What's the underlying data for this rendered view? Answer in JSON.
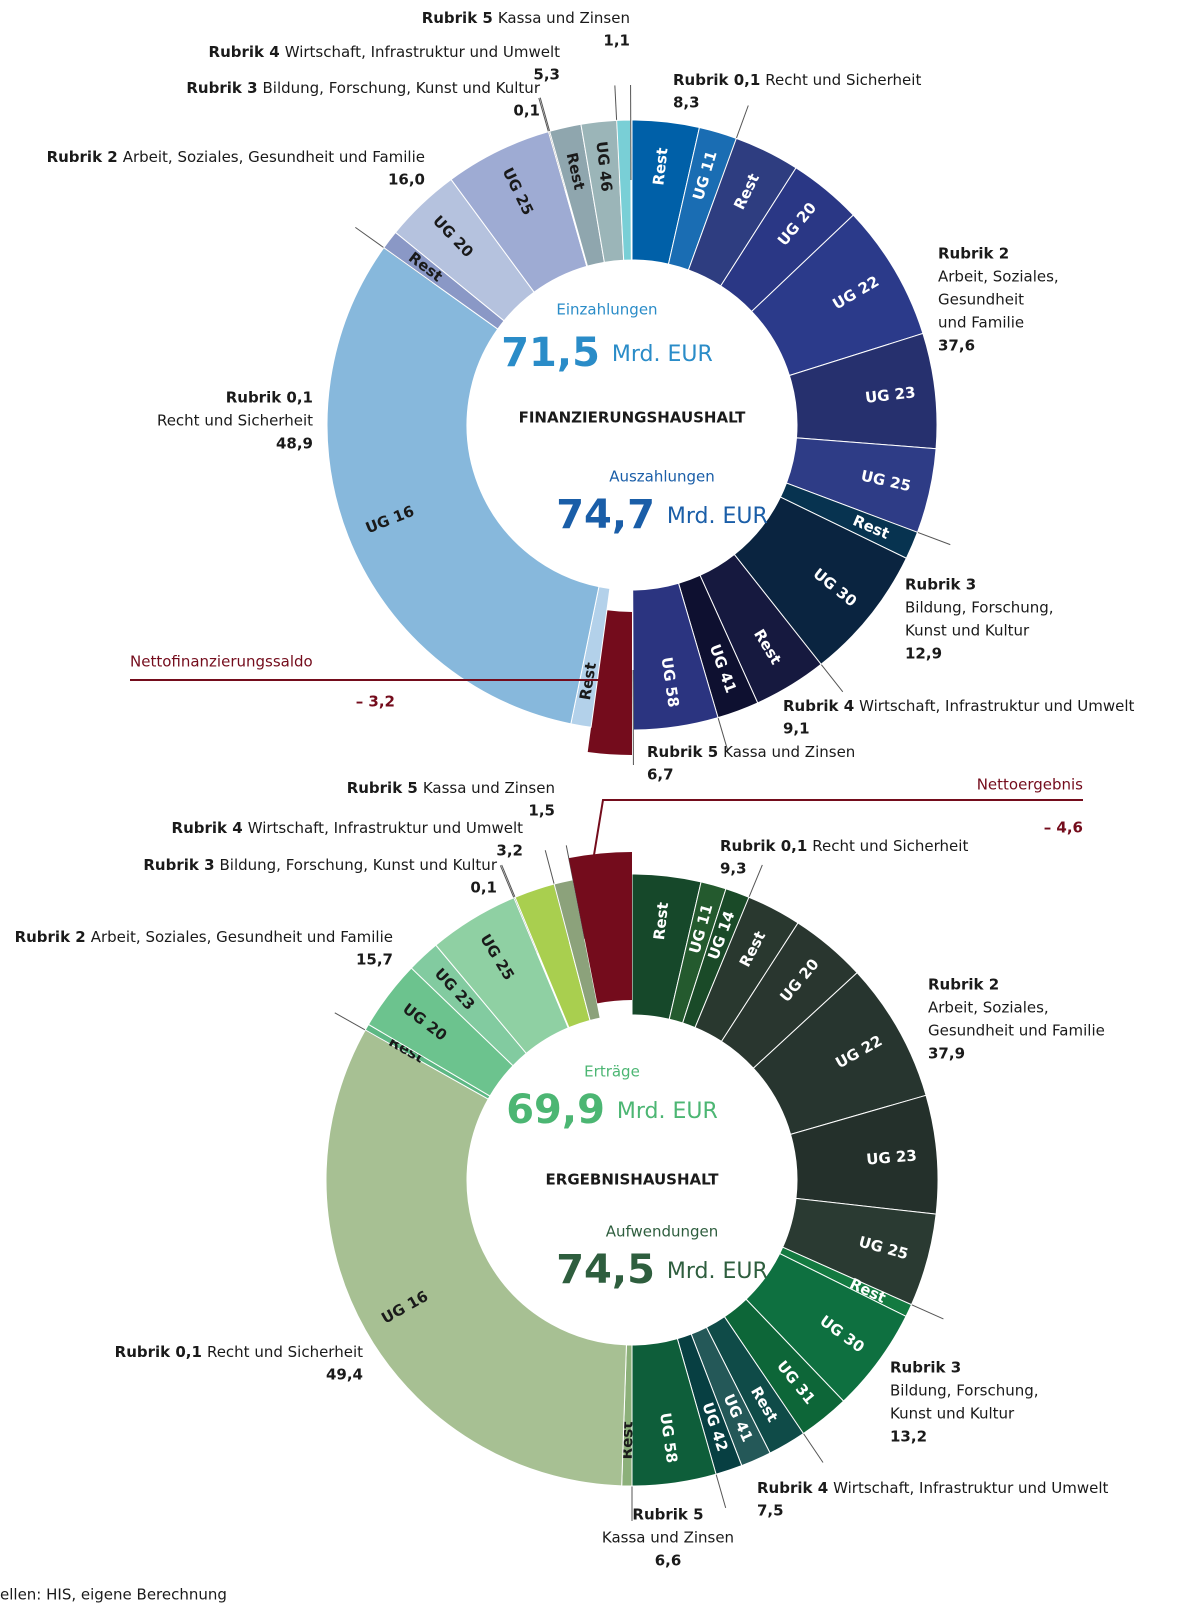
{
  "source": "ellen: HIS, eigene Berechnung",
  "chart_data": [
    {
      "type": "donut",
      "title": "FINANZIERUNGSHAUSHALT",
      "income": {
        "label": "Einzahlungen",
        "total": 71.5,
        "total_label": "71,5",
        "unit": "Mrd. EUR",
        "color": "#2a8cc8",
        "groups": [
          {
            "name": "Rubrik 0,1",
            "text": [
              "Recht und Sicherheit"
            ],
            "value": 48.9,
            "value_label": "48,9",
            "segments": [
              {
                "label": "Rest",
                "value": 1.6,
                "color": "#b3d1ea"
              },
              {
                "label": "UG 16",
                "value": 47.3,
                "color": "#87b8dc"
              }
            ]
          },
          {
            "name": "Rubrik 2",
            "text": [
              "Arbeit, Soziales, Gesundheit und Familie"
            ],
            "value": 16.0,
            "value_label": "16,0",
            "segments": [
              {
                "label": "Rest",
                "value": 1.5,
                "color": "#8a98c6"
              },
              {
                "label": "UG 20",
                "value": 6.0,
                "color": "#b5c2de"
              },
              {
                "label": "UG 25",
                "value": 8.5,
                "color": "#9eabd3"
              }
            ]
          },
          {
            "name": "Rubrik 3",
            "text": [
              "Bildung, Forschung, Kunst und Kultur"
            ],
            "value": 0.1,
            "value_label": "0,1",
            "segments": [
              {
                "label": null,
                "value": 0.1,
                "color": "#777777"
              }
            ]
          },
          {
            "name": "Rubrik 4",
            "text": [
              "Wirtschaft, Infrastruktur und Umwelt"
            ],
            "value": 5.3,
            "value_label": "5,3",
            "segments": [
              {
                "label": "Rest",
                "value": 2.5,
                "color": "#8fa6ae"
              },
              {
                "label": "UG 46",
                "value": 2.8,
                "color": "#9bb5b8"
              }
            ]
          },
          {
            "name": "Rubrik 5",
            "text": [
              "Kassa und Zinsen"
            ],
            "value": 1.1,
            "value_label": "1,1",
            "segments": [
              {
                "label": null,
                "value": 1.1,
                "color": "#79cfd6"
              }
            ]
          }
        ]
      },
      "expense": {
        "label": "Auszahlungen",
        "total": 74.7,
        "total_label": "74,7",
        "unit": "Mrd. EUR",
        "color": "#1a5ea8",
        "groups": [
          {
            "name": "Rubrik 0,1",
            "text": [
              "Recht und Sicherheit"
            ],
            "value": 8.3,
            "value_label": "8,3",
            "segments": [
              {
                "label": "Rest",
                "value": 5.3,
                "color": "#0060a8"
              },
              {
                "label": "UG 11",
                "value": 3.0,
                "color": "#1a6db3"
              }
            ]
          },
          {
            "name": "Rubrik 2",
            "text": [
              "Arbeit, Soziales,",
              "Gesundheit",
              "und Familie"
            ],
            "value": 37.6,
            "value_label": "37,6",
            "segments": [
              {
                "label": "Rest",
                "value": 5.2,
                "color": "#2e3d80"
              },
              {
                "label": "UG 20",
                "value": 5.8,
                "color": "#2a3785"
              },
              {
                "label": "UG 22",
                "value": 10.8,
                "color": "#2b3a8a"
              },
              {
                "label": "UG 23",
                "value": 9.1,
                "color": "#26306e"
              },
              {
                "label": "UG 25",
                "value": 6.7,
                "color": "#2e3c86"
              }
            ]
          },
          {
            "name": "Rubrik 3",
            "text": [
              "Bildung, Forschung,",
              "Kunst und Kultur"
            ],
            "value": 12.9,
            "value_label": "12,9",
            "segments": [
              {
                "label": "Rest",
                "value": 2.2,
                "color": "#073350"
              },
              {
                "label": "UG 30",
                "value": 10.7,
                "color": "#0a2440"
              }
            ]
          },
          {
            "name": "Rubrik 4",
            "text": [
              "Wirtschaft, Infrastruktur und Umwelt"
            ],
            "value": 9.1,
            "value_label": "9,1",
            "segments": [
              {
                "label": "Rest",
                "value": 5.8,
                "color": "#16193f"
              },
              {
                "label": "UG 41",
                "value": 3.3,
                "color": "#0e1030"
              }
            ]
          },
          {
            "name": "Rubrik 5",
            "text": [
              "Kassa und Zinsen"
            ],
            "value": 6.7,
            "value_label": "6,7",
            "segments": [
              {
                "label": "UG 58",
                "value": 6.7,
                "color": "#2b3480"
              }
            ]
          }
        ]
      },
      "balance": {
        "label": "Nettofinanzierungssaldo",
        "value": -3.2,
        "value_label": "– 3,2",
        "color": "#740c1c",
        "placement": "bottom"
      }
    },
    {
      "type": "donut",
      "title": "ERGEBNISHAUSHALT",
      "income": {
        "label": "Erträge",
        "total": 69.9,
        "total_label": "69,9",
        "unit": "Mrd. EUR",
        "color": "#4cb673",
        "groups": [
          {
            "name": "Rubrik 0,1",
            "text": [
              "Recht und Sicherheit"
            ],
            "value": 49.4,
            "value_label": "49,4",
            "segments": [
              {
                "label": "Rest",
                "value": 0.8,
                "color": "#8cb07a"
              },
              {
                "label": "UG 16",
                "value": 48.6,
                "color": "#a7c093"
              }
            ]
          },
          {
            "name": "Rubrik 2",
            "text": [
              "Arbeit, Soziales, Gesundheit und Familie"
            ],
            "value": 15.7,
            "value_label": "15,7",
            "segments": [
              {
                "label": "Rest",
                "value": 0.5,
                "color": "#5db884"
              },
              {
                "label": "UG 20",
                "value": 5.5,
                "color": "#6cc38e"
              },
              {
                "label": "UG 23",
                "value": 2.6,
                "color": "#82cba0"
              },
              {
                "label": "UG 25",
                "value": 7.1,
                "color": "#8fd0a3"
              }
            ]
          },
          {
            "name": "Rubrik 3",
            "text": [
              "Bildung, Forschung, Kunst und Kultur"
            ],
            "value": 0.1,
            "value_label": "0,1",
            "segments": [
              {
                "label": null,
                "value": 0.1,
                "color": "#1ba05a"
              }
            ]
          },
          {
            "name": "Rubrik 4",
            "text": [
              "Wirtschaft, Infrastruktur und Umwelt"
            ],
            "value": 3.2,
            "value_label": "3,2",
            "segments": [
              {
                "label": null,
                "value": 3.2,
                "color": "#a9cf4f"
              }
            ]
          },
          {
            "name": "Rubrik 5",
            "text": [
              "Kassa und Zinsen"
            ],
            "value": 1.5,
            "value_label": "1,5",
            "segments": [
              {
                "label": null,
                "value": 1.5,
                "color": "#8ca27b"
              }
            ]
          }
        ]
      },
      "expense": {
        "label": "Aufwendungen",
        "total": 74.5,
        "total_label": "74,5",
        "unit": "Mrd. EUR",
        "color": "#2e5e3e",
        "groups": [
          {
            "name": "Rubrik 0,1",
            "text": [
              "Recht und Sicherheit"
            ],
            "value": 9.3,
            "value_label": "9,3",
            "segments": [
              {
                "label": "Rest",
                "value": 5.4,
                "color": "#16482a"
              },
              {
                "label": "UG 11",
                "value": 2.0,
                "color": "#245a2e"
              },
              {
                "label": "UG 14",
                "value": 1.9,
                "color": "#1a4a28"
              }
            ]
          },
          {
            "name": "Rubrik 2",
            "text": [
              "Arbeit, Soziales,",
              "Gesundheit und Familie"
            ],
            "value": 37.9,
            "value_label": "37,9",
            "segments": [
              {
                "label": "Rest",
                "value": 4.3,
                "color": "#29382f"
              },
              {
                "label": "UG 20",
                "value": 6.0,
                "color": "#29362f"
              },
              {
                "label": "UG 22",
                "value": 11.0,
                "color": "#27352f"
              },
              {
                "label": "UG 23",
                "value": 9.3,
                "color": "#24302b"
              },
              {
                "label": "UG 25",
                "value": 7.3,
                "color": "#2a3a32"
              }
            ]
          },
          {
            "name": "Rubrik 3",
            "text": [
              "Bildung, Forschung,",
              "Kunst und Kultur"
            ],
            "value": 13.2,
            "value_label": "13,2",
            "segments": [
              {
                "label": "Rest",
                "value": 1.0,
                "color": "#137a40"
              },
              {
                "label": "UG 30",
                "value": 8.2,
                "color": "#0e7040"
              },
              {
                "label": "UG 31",
                "value": 4.0,
                "color": "#0d6638"
              }
            ]
          },
          {
            "name": "Rubrik 4",
            "text": [
              "Wirtschaft, Infrastruktur und Umwelt"
            ],
            "value": 7.5,
            "value_label": "7,5",
            "segments": [
              {
                "label": "Rest",
                "value": 3.0,
                "color": "#0f4b48"
              },
              {
                "label": "UG 41",
                "value": 2.4,
                "color": "#245858"
              },
              {
                "label": "UG 42",
                "value": 2.1,
                "color": "#073f42"
              }
            ]
          },
          {
            "name": "Rubrik 5",
            "text": [
              "Kassa und Zinsen"
            ],
            "value": 6.6,
            "value_label": "6,6",
            "segments": [
              {
                "label": "UG 58",
                "value": 6.6,
                "color": "#0e5e3a"
              }
            ]
          }
        ]
      },
      "balance": {
        "label": "Nettoergebnis",
        "value": -4.6,
        "value_label": "– 4,6",
        "color": "#740c1c",
        "placement": "top"
      }
    }
  ]
}
